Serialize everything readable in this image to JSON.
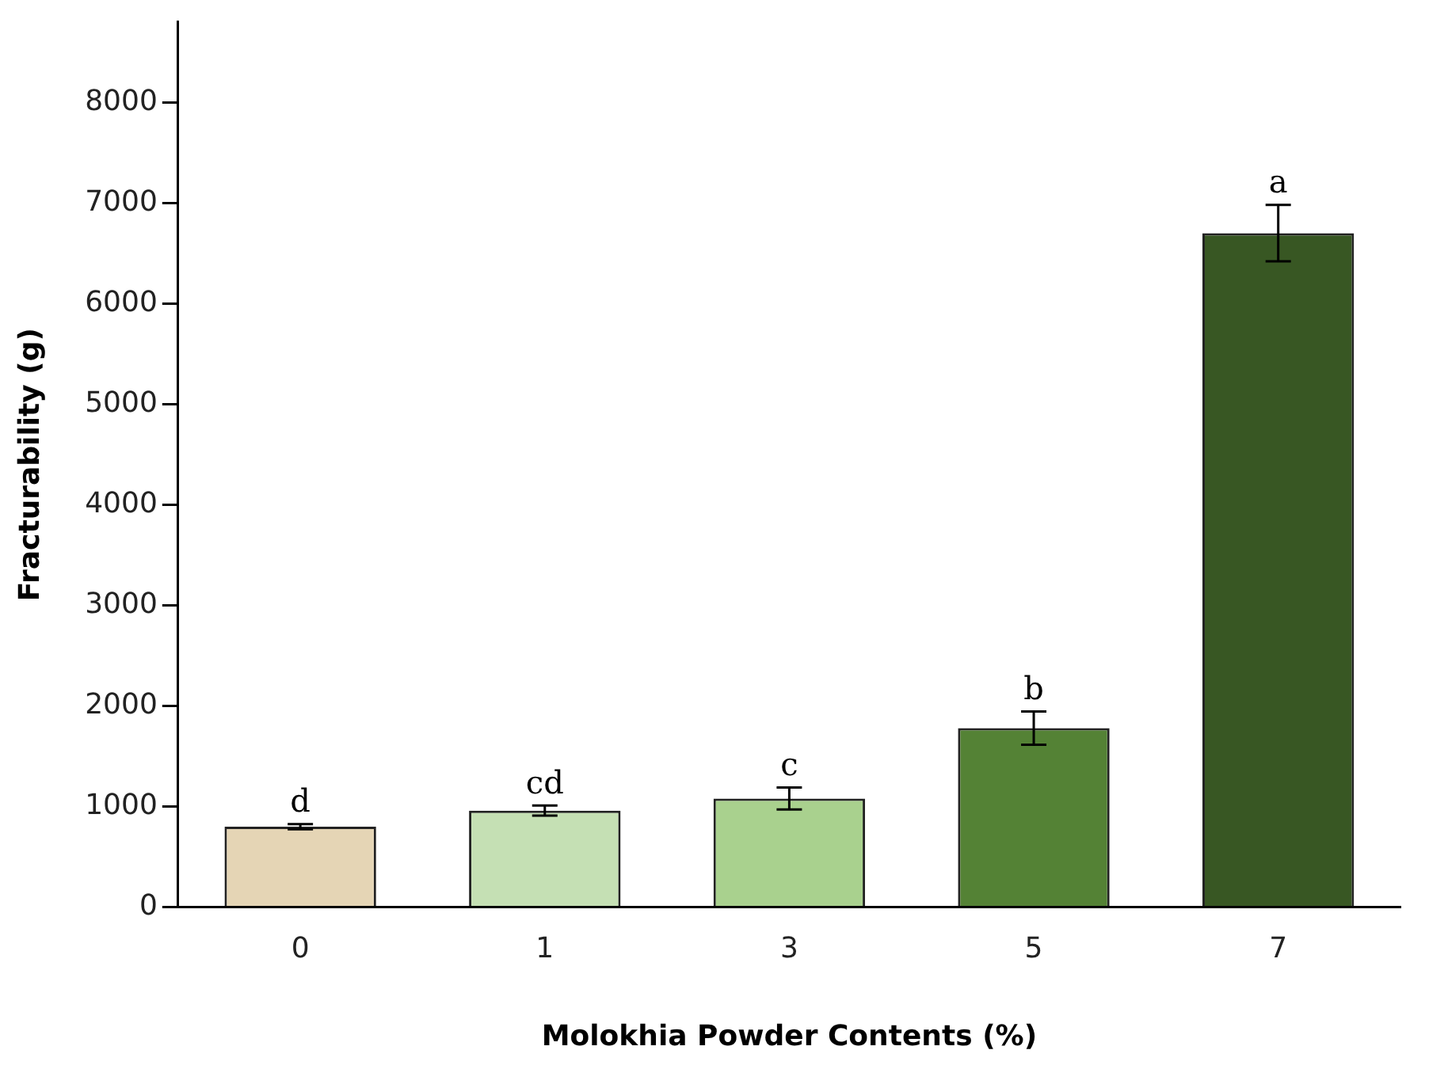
{
  "chart_data": {
    "type": "bar",
    "xlabel": "Molokhia Powder Contents (%)",
    "ylabel": "Fracturability (g)",
    "categories": [
      "0",
      "1",
      "3",
      "5",
      "7"
    ],
    "values": [
      800,
      960,
      1080,
      1780,
      6700
    ],
    "errors": [
      25,
      50,
      110,
      165,
      280
    ],
    "colors": [
      "#e5d5b5",
      "#c5e0b4",
      "#a9d18e",
      "#548235",
      "#385723"
    ],
    "ylim": [
      0,
      8800
    ],
    "yticks": [
      0,
      1000,
      2000,
      3000,
      4000,
      5000,
      6000,
      7000,
      8000
    ],
    "grid": false,
    "legend": false,
    "annotations": [
      {
        "text": "d",
        "x": "0",
        "y": 825
      },
      {
        "text": "cd",
        "x": "1",
        "y": 1010
      },
      {
        "text": "c",
        "x": "3",
        "y": 1190
      },
      {
        "text": "b",
        "x": "5",
        "y": 1945
      },
      {
        "text": "a",
        "x": "7",
        "y": 6980
      }
    ]
  }
}
